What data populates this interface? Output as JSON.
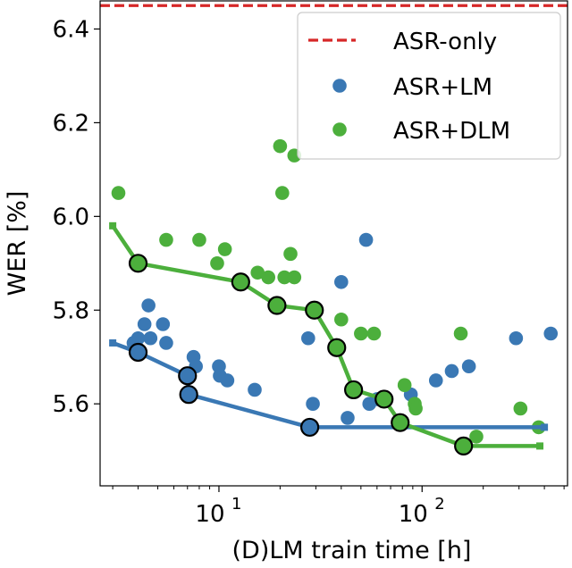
{
  "chart_data": {
    "type": "scatter",
    "title": "",
    "xlabel": "(D)LM train time [h]",
    "ylabel": "WER [%]",
    "xscale": "log",
    "xlim": [
      2.6,
      520
    ],
    "ylim": [
      5.425,
      6.46
    ],
    "x_tick_labels": [
      {
        "value": 10,
        "base": "10",
        "exp": "1"
      },
      {
        "value": 100,
        "base": "10",
        "exp": "2"
      }
    ],
    "y_ticks": [
      5.6,
      5.8,
      6.0,
      6.2,
      6.4
    ],
    "y_tick_labels": [
      "5.6",
      "5.8",
      "6.0",
      "6.2",
      "6.4"
    ],
    "legend_position": "top-right",
    "reference_line": {
      "name": "ASR-only",
      "y": 6.45,
      "color": "#d62728",
      "style": "dashed"
    },
    "series": [
      {
        "name": "ASR+LM",
        "color": "#3a78b4",
        "points": [
          [
            3.8,
            5.73
          ],
          [
            4.0,
            5.74
          ],
          [
            4.3,
            5.77
          ],
          [
            4.5,
            5.81
          ],
          [
            4.6,
            5.74
          ],
          [
            5.3,
            5.77
          ],
          [
            5.5,
            5.73
          ],
          [
            7.5,
            5.7
          ],
          [
            7.7,
            5.68
          ],
          [
            10.0,
            5.68
          ],
          [
            10.1,
            5.66
          ],
          [
            11.0,
            5.65
          ],
          [
            15.0,
            5.63
          ],
          [
            27.5,
            5.74
          ],
          [
            29.0,
            5.6
          ],
          [
            40.0,
            5.86
          ],
          [
            43.0,
            5.57
          ],
          [
            53.0,
            5.95
          ],
          [
            55.0,
            5.6
          ],
          [
            60.0,
            5.61
          ],
          [
            88.0,
            5.62
          ],
          [
            117.0,
            5.65
          ],
          [
            140.0,
            5.67
          ],
          [
            170.0,
            5.68
          ],
          [
            290.0,
            5.74
          ],
          [
            430.0,
            5.75
          ]
        ],
        "pareto": [
          [
            3.0,
            5.73
          ],
          [
            4.0,
            5.71
          ],
          [
            7.0,
            5.66
          ],
          [
            7.1,
            5.62
          ],
          [
            28.0,
            5.55
          ],
          [
            400.0,
            5.55
          ]
        ],
        "pareto_highlighted": [
          [
            4.0,
            5.71
          ],
          [
            7.0,
            5.66
          ],
          [
            7.1,
            5.62
          ],
          [
            28.0,
            5.55
          ]
        ]
      },
      {
        "name": "ASR+DLM",
        "color": "#4caf3c",
        "points": [
          [
            3.2,
            6.05
          ],
          [
            5.5,
            5.95
          ],
          [
            8.0,
            5.95
          ],
          [
            9.8,
            5.9
          ],
          [
            10.7,
            5.93
          ],
          [
            15.5,
            5.88
          ],
          [
            17.5,
            5.87
          ],
          [
            20.0,
            6.15
          ],
          [
            20.5,
            6.05
          ],
          [
            21.0,
            5.87
          ],
          [
            22.5,
            5.92
          ],
          [
            23.5,
            6.13
          ],
          [
            23.5,
            5.87
          ],
          [
            40.0,
            5.78
          ],
          [
            50.0,
            5.75
          ],
          [
            58.0,
            5.75
          ],
          [
            82.0,
            5.64
          ],
          [
            92.0,
            5.6
          ],
          [
            93.0,
            5.59
          ],
          [
            155.0,
            5.75
          ],
          [
            185.0,
            5.53
          ],
          [
            305.0,
            5.59
          ],
          [
            375.0,
            5.55
          ]
        ],
        "pareto": [
          [
            3.0,
            5.98
          ],
          [
            4.0,
            5.9
          ],
          [
            12.8,
            5.86
          ],
          [
            19.3,
            5.81
          ],
          [
            29.5,
            5.8
          ],
          [
            38.0,
            5.72
          ],
          [
            46.0,
            5.63
          ],
          [
            65.0,
            5.61
          ],
          [
            78.0,
            5.56
          ],
          [
            160.0,
            5.51
          ],
          [
            380.0,
            5.51
          ]
        ],
        "pareto_highlighted": [
          [
            4.0,
            5.9
          ],
          [
            12.8,
            5.86
          ],
          [
            19.3,
            5.81
          ],
          [
            29.5,
            5.8
          ],
          [
            38.0,
            5.72
          ],
          [
            46.0,
            5.63
          ],
          [
            65.0,
            5.61
          ],
          [
            78.0,
            5.56
          ],
          [
            160.0,
            5.51
          ]
        ]
      }
    ]
  }
}
